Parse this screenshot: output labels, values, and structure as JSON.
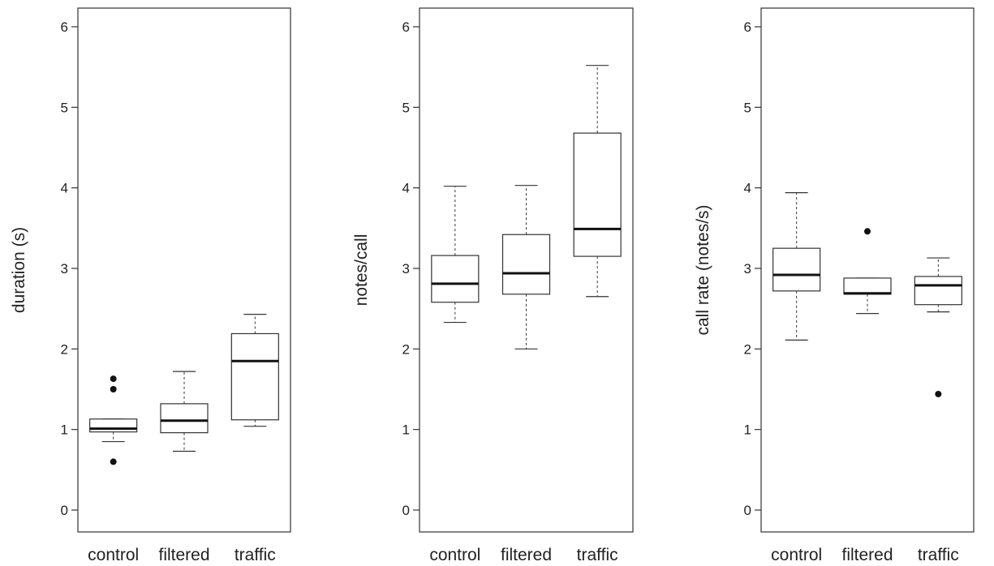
{
  "chart_data": [
    {
      "type": "boxplot",
      "ylabel": "duration (s)",
      "ylim": [
        0,
        6
      ],
      "yticks": [
        0,
        1,
        2,
        3,
        4,
        5,
        6
      ],
      "categories": [
        "control",
        "filtered",
        "traffic"
      ],
      "boxes": [
        {
          "category": "control",
          "whisker_low": 0.85,
          "q1": 0.97,
          "median": 1.01,
          "q3": 1.13,
          "whisker_high": 1.13,
          "outliers": [
            0.6,
            1.5,
            1.63
          ]
        },
        {
          "category": "filtered",
          "whisker_low": 0.73,
          "q1": 0.96,
          "median": 1.11,
          "q3": 1.32,
          "whisker_high": 1.72,
          "outliers": []
        },
        {
          "category": "traffic",
          "whisker_low": 1.04,
          "q1": 1.12,
          "median": 1.85,
          "q3": 2.19,
          "whisker_high": 2.43,
          "outliers": []
        }
      ]
    },
    {
      "type": "boxplot",
      "ylabel": "notes/call",
      "ylim": [
        0,
        6
      ],
      "yticks": [
        0,
        1,
        2,
        3,
        4,
        5,
        6
      ],
      "categories": [
        "control",
        "filtered",
        "traffic"
      ],
      "boxes": [
        {
          "category": "control",
          "whisker_low": 2.33,
          "q1": 2.58,
          "median": 2.81,
          "q3": 3.16,
          "whisker_high": 4.02,
          "outliers": []
        },
        {
          "category": "filtered",
          "whisker_low": 2.0,
          "q1": 2.68,
          "median": 2.94,
          "q3": 3.42,
          "whisker_high": 4.03,
          "outliers": []
        },
        {
          "category": "traffic",
          "whisker_low": 2.65,
          "q1": 3.15,
          "median": 3.49,
          "q3": 4.68,
          "whisker_high": 5.52,
          "outliers": []
        }
      ]
    },
    {
      "type": "boxplot",
      "ylabel": "call rate (notes/s)",
      "ylim": [
        0,
        6
      ],
      "yticks": [
        0,
        1,
        2,
        3,
        4,
        5,
        6
      ],
      "categories": [
        "control",
        "filtered",
        "traffic"
      ],
      "boxes": [
        {
          "category": "control",
          "whisker_low": 2.11,
          "q1": 2.72,
          "median": 2.92,
          "q3": 3.25,
          "whisker_high": 3.94,
          "outliers": []
        },
        {
          "category": "filtered",
          "whisker_low": 2.44,
          "q1": 2.68,
          "median": 2.69,
          "q3": 2.88,
          "whisker_high": 2.88,
          "outliers": [
            3.46
          ]
        },
        {
          "category": "traffic",
          "whisker_low": 2.46,
          "q1": 2.55,
          "median": 2.79,
          "q3": 2.9,
          "whisker_high": 3.13,
          "outliers": [
            1.44
          ]
        }
      ]
    }
  ]
}
